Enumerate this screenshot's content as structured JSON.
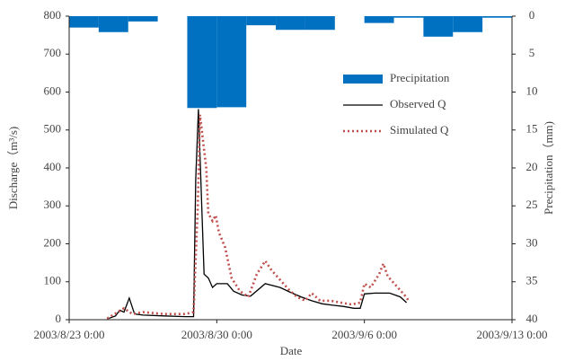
{
  "chart_data": {
    "type": "line",
    "xlabel": "Date",
    "ylabel": "Discharge（m³/s)",
    "y2label": "Precipitation（mm)",
    "xlim": [
      0,
      21
    ],
    "xticks": [
      {
        "value": 0,
        "label": "2003/8/23 0:00"
      },
      {
        "value": 7,
        "label": "2003/8/30 0:00"
      },
      {
        "value": 14,
        "label": "2003/9/6 0:00"
      },
      {
        "value": 21,
        "label": "2003/9/13 0:00"
      }
    ],
    "ylim": [
      0,
      800
    ],
    "yticks": [
      0,
      100,
      200,
      300,
      400,
      500,
      600,
      700,
      800
    ],
    "y2lim": [
      40,
      0
    ],
    "y2ticks": [
      0,
      5,
      10,
      15,
      20,
      25,
      30,
      35,
      40
    ],
    "legend": "upper right",
    "series": [
      {
        "name": "Precipitation",
        "type": "bar",
        "axis": "y2",
        "color": "#0070c0",
        "x": [
          0,
          1.4,
          2.8,
          4.2,
          5.6,
          7,
          8.4,
          9.8,
          11.2,
          12.6,
          14,
          15.4,
          16.8,
          18.2,
          19.6
        ],
        "values": [
          1.5,
          2.1,
          0.7,
          0,
          12.1,
          12,
          1.2,
          1.8,
          1.8,
          0,
          0.9,
          0.2,
          2.7,
          2.1,
          0.2
        ]
      },
      {
        "name": "Observed Q",
        "type": "line",
        "color": "#000000",
        "dash": "solid",
        "x": [
          1.8,
          2.2,
          2.4,
          2.6,
          2.85,
          3.1,
          3.5,
          4.5,
          5.5,
          5.9,
          6.0,
          6.13,
          6.4,
          6.6,
          6.8,
          7.0,
          7.5,
          7.8,
          8.2,
          8.6,
          9.3,
          10,
          10.5,
          11,
          11.5,
          12,
          12.5,
          13,
          13.5,
          13.8,
          14.0,
          14.5,
          15.2,
          15.7,
          16.0
        ],
        "values": [
          2,
          10,
          25,
          20,
          57,
          15,
          12,
          10,
          8,
          8,
          370,
          555,
          120,
          110,
          85,
          95,
          95,
          75,
          65,
          62,
          95,
          85,
          72,
          60,
          50,
          42,
          38,
          35,
          30,
          30,
          68,
          70,
          70,
          60,
          45
        ]
      },
      {
        "name": "Simulated Q",
        "type": "line",
        "color": "#c0504d",
        "dash": "dotted",
        "x": [
          1.8,
          2.3,
          2.6,
          3.0,
          3.5,
          4.5,
          5.5,
          5.9,
          6.1,
          6.2,
          6.35,
          6.5,
          6.6,
          6.8,
          6.95,
          7.1,
          7.4,
          7.7,
          8.1,
          8.5,
          8.9,
          9.3,
          9.6,
          10,
          10.4,
          10.8,
          11.2,
          11.5,
          11.9,
          12.4,
          12.9,
          13.4,
          13.8,
          14.0,
          14.3,
          14.7,
          14.9,
          15.1,
          15.5,
          15.9,
          16.1
        ],
        "values": [
          3,
          20,
          30,
          15,
          20,
          15,
          15,
          20,
          300,
          540,
          470,
          400,
          280,
          260,
          275,
          230,
          190,
          110,
          75,
          60,
          120,
          155,
          130,
          105,
          80,
          60,
          50,
          70,
          50,
          50,
          45,
          40,
          45,
          95,
          85,
          120,
          148,
          115,
          90,
          65,
          50
        ]
      }
    ]
  }
}
